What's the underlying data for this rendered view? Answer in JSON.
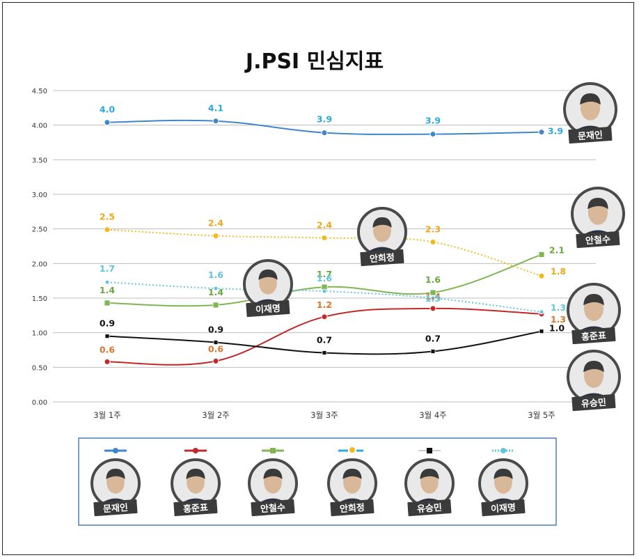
{
  "chart_data": {
    "type": "line",
    "title": "J.PSI 민심지표",
    "categories": [
      "3월 1주",
      "3월 2주",
      "3월 3주",
      "3월 4주",
      "3월 5주"
    ],
    "ylim": [
      0,
      4.5
    ],
    "yticks": [
      "0.00",
      "0.50",
      "1.00",
      "1.50",
      "2.00",
      "2.50",
      "3.00",
      "3.50",
      "4.00",
      "4.50"
    ],
    "grid": true,
    "legend_position": "bottom",
    "series": [
      {
        "name": "문재인",
        "color": "#3f86c8",
        "label_color": "#2aa8d8",
        "marker": "circle",
        "line": "solid",
        "values": [
          4.04,
          4.06,
          3.89,
          3.87,
          3.9
        ],
        "labels": [
          "4.0",
          "4.1",
          "3.9",
          "3.9",
          "3.9"
        ]
      },
      {
        "name": "홍준표",
        "color": "#c0282a",
        "label_color": "#e0732a",
        "marker": "circle",
        "line": "solid",
        "values": [
          0.58,
          0.59,
          1.23,
          1.35,
          1.27
        ],
        "labels": [
          "0.6",
          "0.6",
          "1.2",
          "1.4",
          "1.3"
        ]
      },
      {
        "name": "안철수",
        "color": "#7fb552",
        "label_color": "#6aa83e",
        "marker": "square",
        "line": "solid",
        "values": [
          1.43,
          1.4,
          1.66,
          1.58,
          2.13
        ],
        "labels": [
          "1.4",
          "1.4",
          "1.7",
          "1.6",
          "2.1"
        ]
      },
      {
        "name": "안희정",
        "color": "#f2b81c",
        "label_color": "#eaa91a",
        "marker": "circle",
        "line": "dotted",
        "values": [
          2.49,
          2.4,
          2.37,
          2.31,
          1.82
        ],
        "labels": [
          "2.5",
          "2.4",
          "2.4",
          "2.3",
          "1.8"
        ]
      },
      {
        "name": "유승민",
        "color": "#111111",
        "label_color": "#111111",
        "marker": "square",
        "line": "solid",
        "values": [
          0.95,
          0.86,
          0.71,
          0.73,
          1.02
        ],
        "labels": [
          "0.9",
          "0.9",
          "0.7",
          "0.7",
          "1.0"
        ]
      },
      {
        "name": "이재명",
        "color": "#62c4de",
        "label_color": "#62c4de",
        "marker": "circle",
        "line": "dotted",
        "values": [
          1.73,
          1.64,
          1.6,
          1.5,
          1.3
        ],
        "labels": [
          "1.7",
          "1.6",
          "1.6",
          "1.5",
          "1.3"
        ]
      }
    ]
  },
  "legend": {
    "items": [
      {
        "name": "문재인",
        "color": "#3f86c8",
        "style": "solid-circle"
      },
      {
        "name": "홍준표",
        "color": "#c0282a",
        "style": "solid-circle"
      },
      {
        "name": "안철수",
        "color": "#7fb552",
        "style": "solid-square"
      },
      {
        "name": "안희정",
        "color": "#2aa8d8",
        "style": "dash-dot",
        "dot_color": "#f2b81c"
      },
      {
        "name": "유승민",
        "color": "#999999",
        "style": "solid-square",
        "dot_color": "#111111"
      },
      {
        "name": "이재명",
        "color": "#62c4de",
        "style": "dotted-circle"
      }
    ]
  },
  "callouts": [
    "문재인",
    "안철수",
    "홍준표",
    "유승민",
    "안희정",
    "이재명"
  ]
}
